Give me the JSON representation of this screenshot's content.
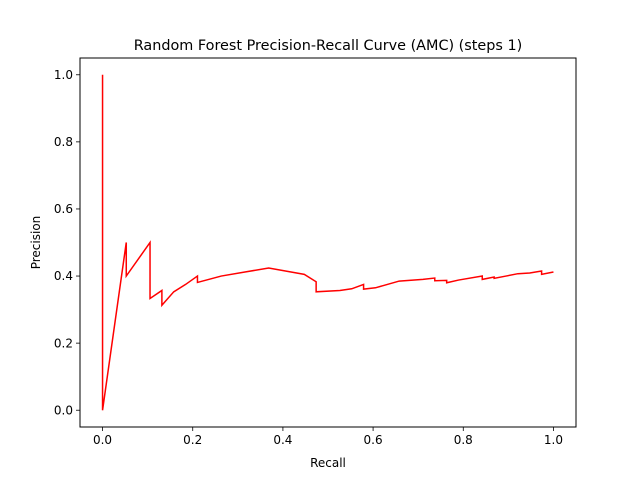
{
  "chart_data": {
    "type": "line",
    "title": "Random Forest Precision-Recall Curve (AMC) (steps 1)",
    "xlabel": "Recall",
    "ylabel": "Precision",
    "xlim": [
      -0.05,
      1.05
    ],
    "ylim": [
      -0.05,
      1.05
    ],
    "xticks": [
      0.0,
      0.2,
      0.4,
      0.6,
      0.8,
      1.0
    ],
    "xtick_labels": [
      "0.0",
      "0.2",
      "0.4",
      "0.6",
      "0.8",
      "1.0"
    ],
    "yticks": [
      0.0,
      0.2,
      0.4,
      0.6,
      0.8,
      1.0
    ],
    "ytick_labels": [
      "0.0",
      "0.2",
      "0.4",
      "0.6",
      "0.8",
      "1.0"
    ],
    "grid": false,
    "legend": "none",
    "series": [
      {
        "color": "#ff0000",
        "x": [
          0.0,
          0.0,
          0.0,
          0.0526,
          0.0526,
          0.1053,
          0.1053,
          0.1316,
          0.1316,
          0.1579,
          0.1842,
          0.2105,
          0.2105,
          0.2632,
          0.3158,
          0.3684,
          0.4474,
          0.4737,
          0.4737,
          0.5263,
          0.5526,
          0.5789,
          0.5789,
          0.6053,
          0.6316,
          0.6579,
          0.7105,
          0.7368,
          0.7368,
          0.7632,
          0.7632,
          0.7895,
          0.8421,
          0.8421,
          0.8684,
          0.8684,
          0.8947,
          0.9211,
          0.9474,
          0.9737,
          0.9737,
          1.0
        ],
        "y": [
          1.0,
          0.0,
          0.0,
          0.5,
          0.4,
          0.5,
          0.333,
          0.357,
          0.313,
          0.353,
          0.375,
          0.4,
          0.381,
          0.4,
          0.412,
          0.424,
          0.405,
          0.383,
          0.353,
          0.357,
          0.362,
          0.375,
          0.361,
          0.365,
          0.375,
          0.385,
          0.39,
          0.394,
          0.386,
          0.387,
          0.38,
          0.388,
          0.4,
          0.39,
          0.397,
          0.393,
          0.4,
          0.407,
          0.409,
          0.415,
          0.405,
          0.412
        ]
      }
    ]
  }
}
